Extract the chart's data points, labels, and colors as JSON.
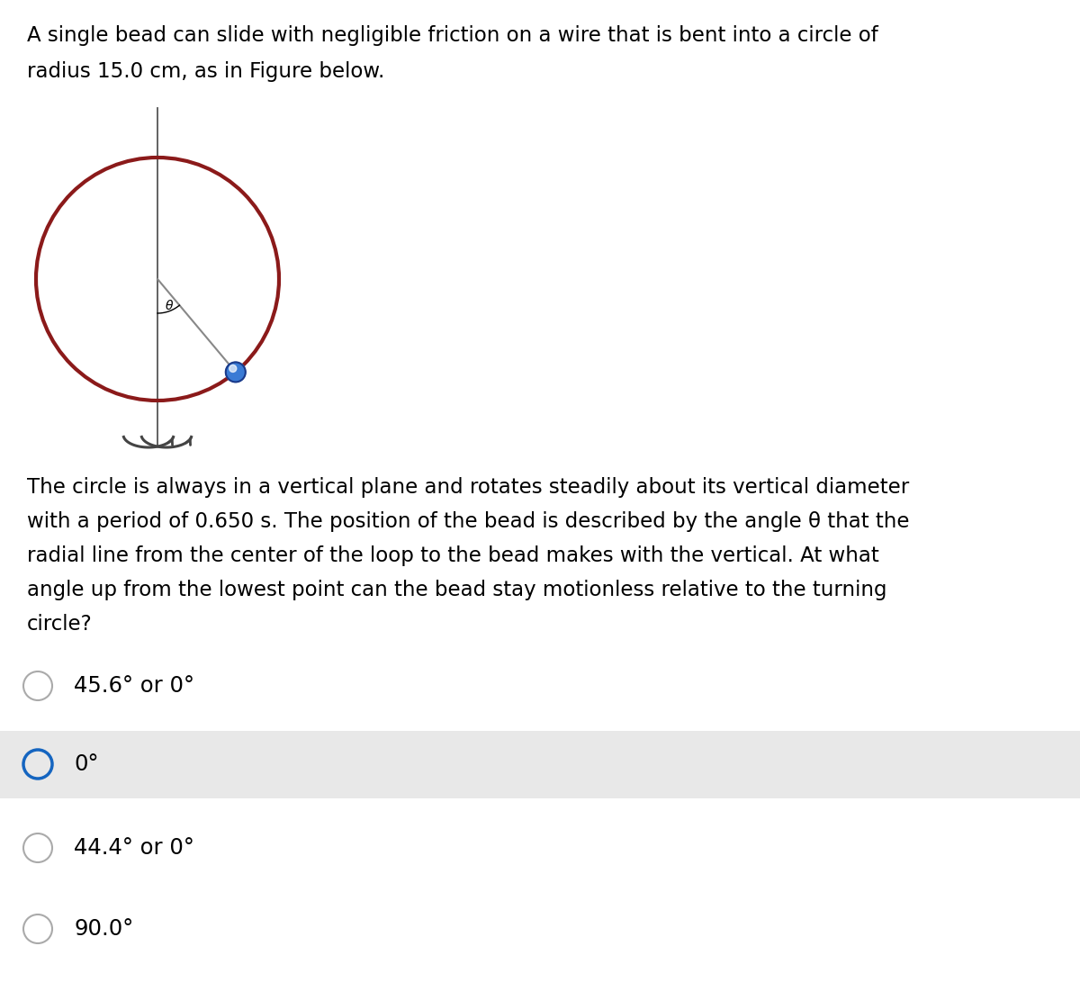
{
  "title_line1": "A single bead can slide with negligible friction on a wire that is bent into a circle of",
  "title_line2": "radius 15.0 cm, as in Figure below.",
  "body_line1": "The circle is always in a vertical plane and rotates steadily about its vertical diameter",
  "body_line2": "with a period of 0.650 s. The position of the bead is described by the angle θ that the",
  "body_line2a": "with a period of 0.650 s. The position of the bead is described by the angle ",
  "body_line2b": " that the",
  "body_line3": "radial line from the center of the loop to the bead makes with the vertical. At what",
  "body_line4": "angle up from the lowest point can the bead stay motionless relative to the turning",
  "body_line5": "circle?",
  "options": [
    {
      "label": "45.6° or 0°",
      "selected": false
    },
    {
      "label": "0°",
      "selected": true
    },
    {
      "label": "44.4° or 0°",
      "selected": false
    },
    {
      "label": "90.0°",
      "selected": false
    }
  ],
  "circle_color": "#8B1A1A",
  "circle_linewidth": 3.0,
  "axis_color": "#555555",
  "bead_color": "#3A7BD5",
  "radial_line_color": "#888888",
  "selected_bg": "#E8E8E8",
  "selected_ring_color": "#1565C0",
  "unselected_ring_color": "#AAAAAA",
  "background_color": "#FFFFFF",
  "font_size_body": 16.5,
  "font_size_options": 17.5,
  "fig_width": 12.0,
  "fig_height": 11.11
}
